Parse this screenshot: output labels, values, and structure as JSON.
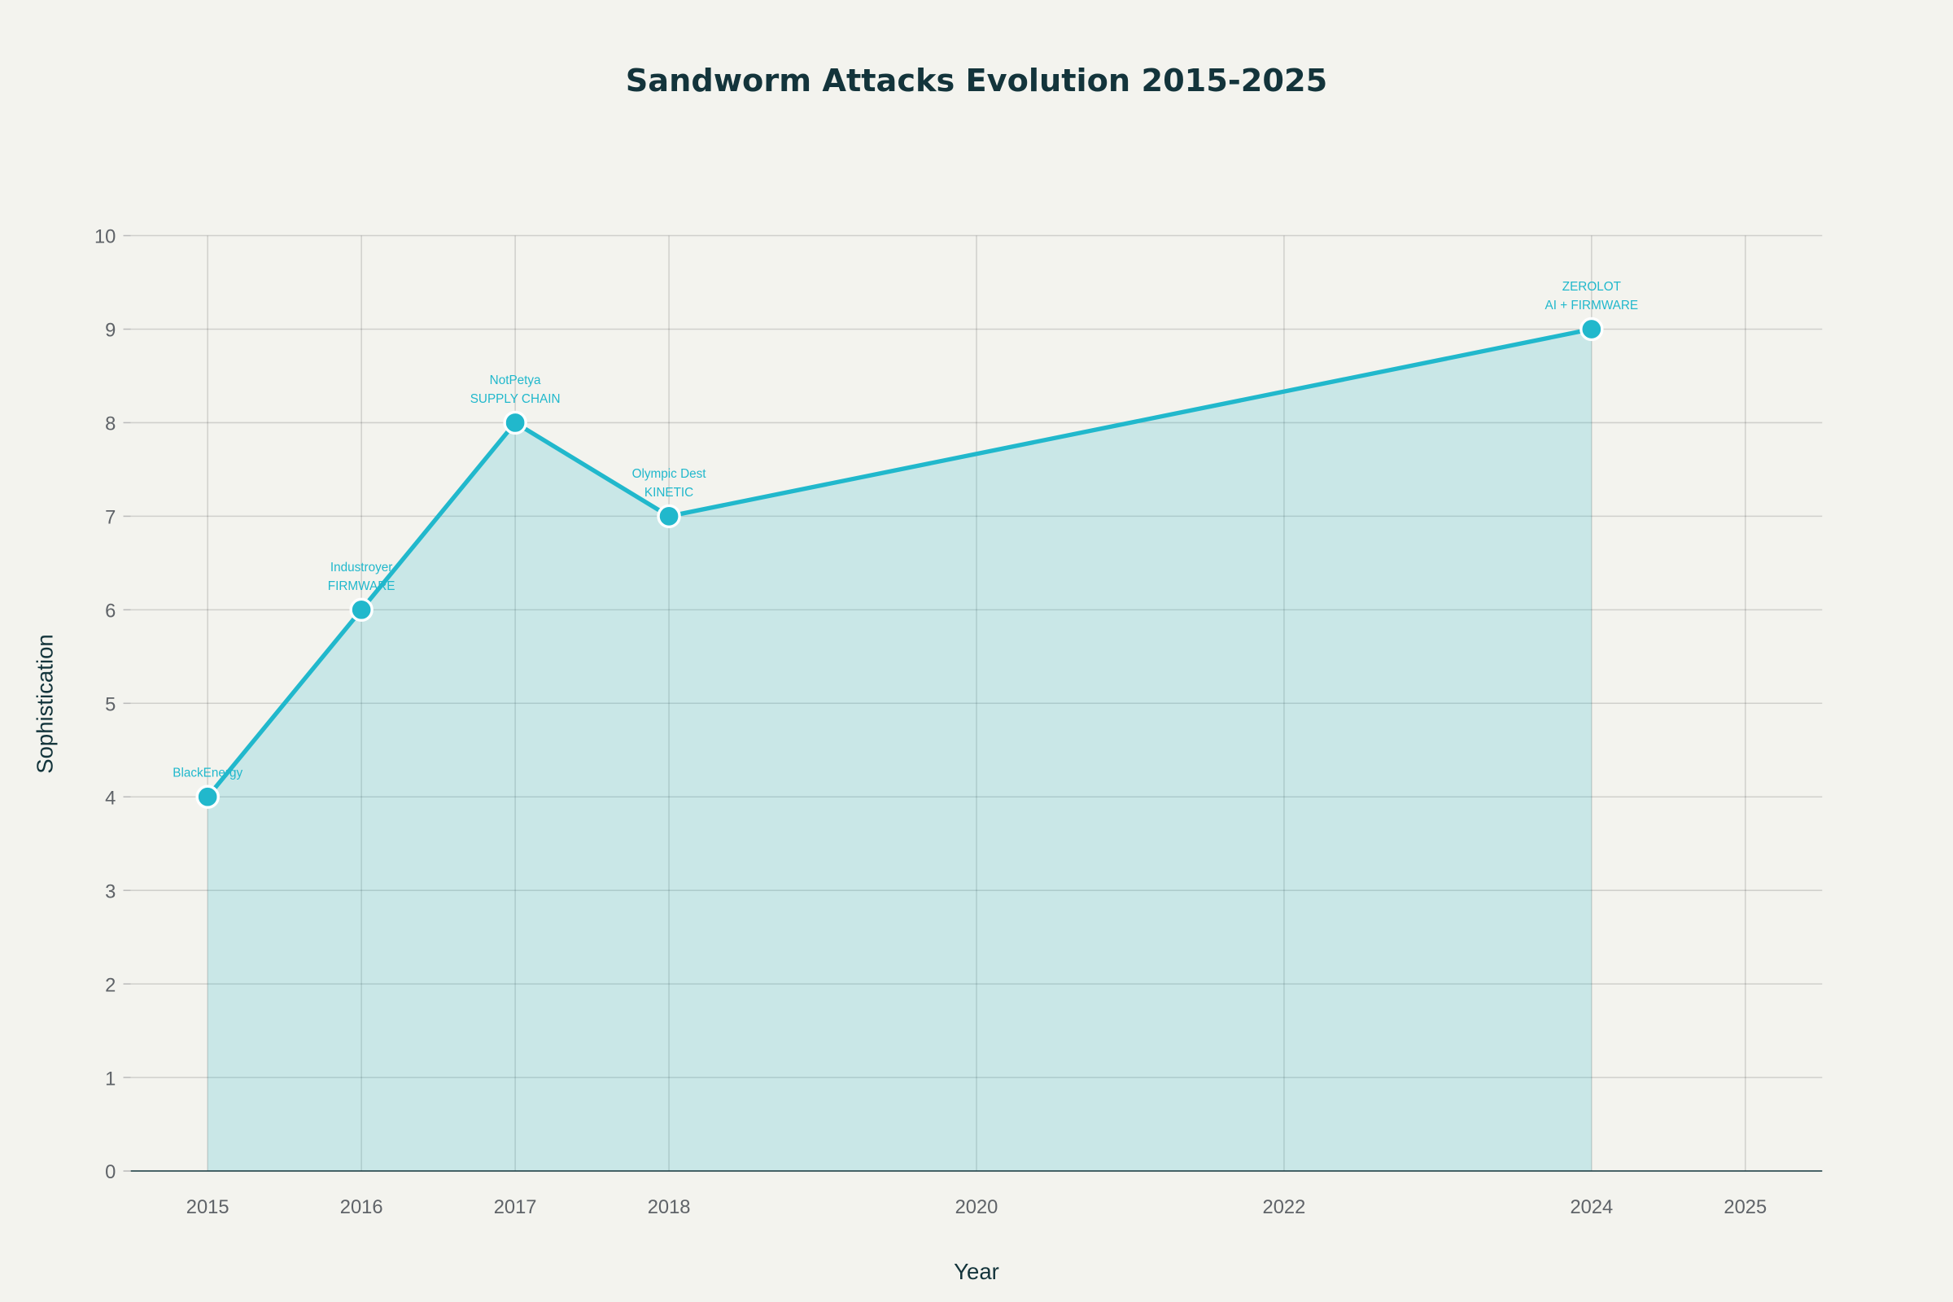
{
  "chart_data": {
    "type": "area",
    "title": "Sandworm Attacks Evolution 2015-2025",
    "xlabel": "Year",
    "ylabel": "Sophistication",
    "xlim": [
      2014.5,
      2025.5
    ],
    "ylim": [
      0,
      10
    ],
    "x_ticks": [
      2015,
      2016,
      2017,
      2018,
      2020,
      2022,
      2024,
      2025
    ],
    "y_ticks": [
      0,
      1,
      2,
      3,
      4,
      5,
      6,
      7,
      8,
      9,
      10
    ],
    "grid": true,
    "series": [
      {
        "name": "Sophistication",
        "color": "#21b8cc",
        "fill": "rgba(33,184,204,0.2)",
        "x": [
          2015,
          2016,
          2017,
          2018,
          2024
        ],
        "y": [
          4,
          6,
          8,
          7,
          9
        ],
        "annotations": [
          [
            "BlackEnergy"
          ],
          [
            "Industroyer",
            "FIRMWARE"
          ],
          [
            "NotPetya",
            "SUPPLY CHAIN"
          ],
          [
            "Olympic Dest",
            "KINETIC"
          ],
          [
            "ZEROLOT",
            "AI + FIRMWARE"
          ]
        ]
      }
    ]
  }
}
